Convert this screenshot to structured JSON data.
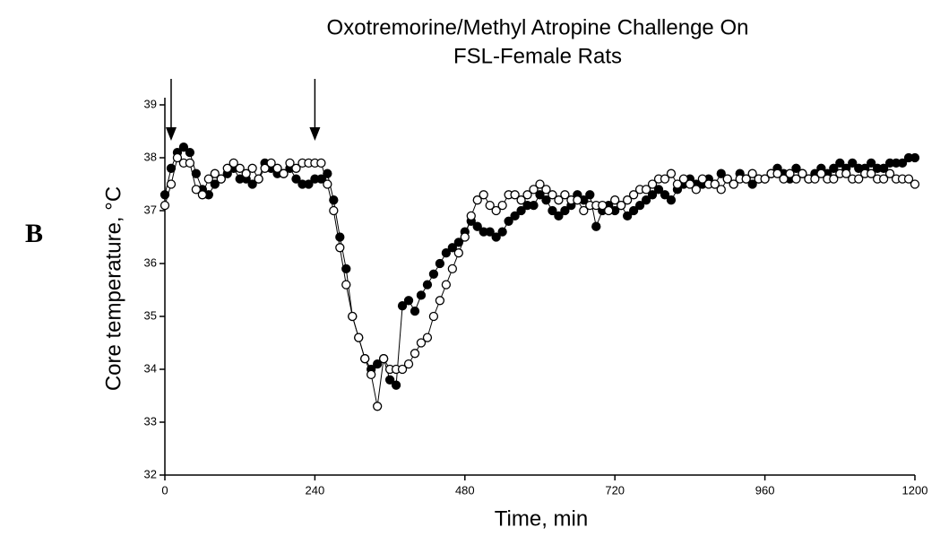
{
  "chart_data": {
    "type": "line",
    "title": [
      "Oxotremorine/Methyl Atropine Challenge On",
      "FSL-Female Rats"
    ],
    "panel_label": "B",
    "xlabel": "Time, min",
    "ylabel": "Core temperature, °C",
    "xlim": [
      0,
      1200
    ],
    "xticks": [
      0,
      240,
      480,
      720,
      960,
      1200
    ],
    "ylim": [
      32,
      39
    ],
    "yticks": [
      32,
      33,
      34,
      35,
      36,
      37,
      38,
      39
    ],
    "arrows": [
      10,
      240
    ],
    "x": [
      0,
      10,
      20,
      30,
      40,
      50,
      60,
      70,
      80,
      90,
      100,
      110,
      120,
      130,
      140,
      150,
      160,
      170,
      180,
      190,
      200,
      210,
      220,
      230,
      240,
      250,
      260,
      270,
      280,
      290,
      300,
      310,
      320,
      330,
      340,
      350,
      360,
      370,
      380,
      390,
      400,
      410,
      420,
      430,
      440,
      450,
      460,
      470,
      480,
      490,
      500,
      510,
      520,
      530,
      540,
      550,
      560,
      570,
      580,
      590,
      600,
      610,
      620,
      630,
      640,
      650,
      660,
      670,
      680,
      690,
      700,
      710,
      720,
      730,
      740,
      750,
      760,
      770,
      780,
      790,
      800,
      810,
      820,
      830,
      840,
      850,
      860,
      870,
      880,
      890,
      900,
      910,
      920,
      930,
      940,
      950,
      960,
      970,
      980,
      990,
      1000,
      1010,
      1020,
      1030,
      1040,
      1050,
      1060,
      1070,
      1080,
      1090,
      1100,
      1110,
      1120,
      1130,
      1140,
      1150,
      1160,
      1170,
      1180,
      1190,
      1200
    ],
    "series": [
      {
        "color": "#000000",
        "marker_fill": "#000000",
        "values": [
          37.3,
          37.8,
          38.1,
          38.2,
          38.1,
          37.7,
          37.4,
          37.3,
          37.5,
          37.6,
          37.7,
          37.8,
          37.6,
          37.6,
          37.5,
          37.6,
          37.9,
          37.8,
          37.7,
          37.7,
          37.8,
          37.6,
          37.5,
          37.5,
          37.6,
          37.6,
          37.7,
          37.2,
          36.5,
          35.9,
          35.0,
          34.6,
          34.2,
          34.0,
          34.1,
          34.2,
          33.8,
          33.7,
          35.2,
          35.3,
          35.1,
          35.4,
          35.6,
          35.8,
          36.0,
          36.2,
          36.3,
          36.4,
          36.6,
          36.8,
          36.7,
          36.6,
          36.6,
          36.5,
          36.6,
          36.8,
          36.9,
          37.0,
          37.1,
          37.1,
          37.3,
          37.2,
          37.0,
          36.9,
          37.0,
          37.1,
          37.3,
          37.2,
          37.3,
          36.7,
          37.0,
          37.1,
          37.0,
          37.1,
          36.9,
          37.0,
          37.1,
          37.2,
          37.3,
          37.4,
          37.3,
          37.2,
          37.4,
          37.5,
          37.6,
          37.5,
          37.5,
          37.6,
          37.5,
          37.7,
          37.6,
          37.5,
          37.7,
          37.6,
          37.5,
          37.6,
          37.6,
          37.7,
          37.8,
          37.7,
          37.6,
          37.8,
          37.7,
          37.6,
          37.7,
          37.8,
          37.7,
          37.8,
          37.9,
          37.8,
          37.9,
          37.8,
          37.8,
          37.9,
          37.8,
          37.8,
          37.9,
          37.9,
          37.9,
          38.0,
          38.0
        ]
      },
      {
        "color": "#000000",
        "marker_fill": "#ffffff",
        "values": [
          37.1,
          37.5,
          38.0,
          37.9,
          37.9,
          37.4,
          37.3,
          37.6,
          37.7,
          37.6,
          37.8,
          37.9,
          37.8,
          37.7,
          37.8,
          37.6,
          37.8,
          37.9,
          37.8,
          37.7,
          37.9,
          37.8,
          37.9,
          37.9,
          37.9,
          37.9,
          37.5,
          37.0,
          36.3,
          35.6,
          35.0,
          34.6,
          34.2,
          33.9,
          33.3,
          34.2,
          34.0,
          34.0,
          34.0,
          34.1,
          34.3,
          34.5,
          34.6,
          35.0,
          35.3,
          35.6,
          35.9,
          36.2,
          36.5,
          36.9,
          37.2,
          37.3,
          37.1,
          37.0,
          37.1,
          37.3,
          37.3,
          37.2,
          37.3,
          37.4,
          37.5,
          37.4,
          37.3,
          37.2,
          37.3,
          37.2,
          37.2,
          37.0,
          37.1,
          37.1,
          37.1,
          37.0,
          37.2,
          37.1,
          37.2,
          37.3,
          37.4,
          37.4,
          37.5,
          37.6,
          37.6,
          37.7,
          37.5,
          37.6,
          37.5,
          37.4,
          37.6,
          37.5,
          37.5,
          37.4,
          37.6,
          37.5,
          37.6,
          37.6,
          37.7,
          37.6,
          37.6,
          37.7,
          37.7,
          37.6,
          37.7,
          37.6,
          37.7,
          37.6,
          37.6,
          37.7,
          37.6,
          37.6,
          37.7,
          37.7,
          37.6,
          37.6,
          37.7,
          37.7,
          37.6,
          37.6,
          37.7,
          37.6,
          37.6,
          37.6,
          37.5
        ]
      }
    ]
  }
}
